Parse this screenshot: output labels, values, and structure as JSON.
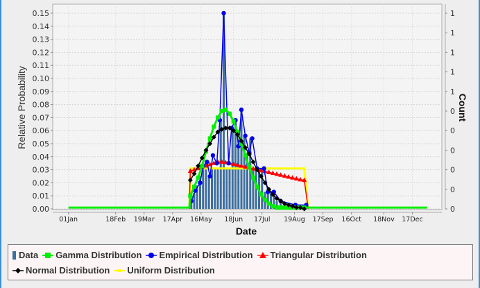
{
  "chart_data": {
    "type": "line",
    "xlabel": "Date",
    "ylabel": "Relative Probability",
    "y2label": "Count",
    "ylim": [
      0,
      0.15
    ],
    "xlim_day_of_year": [
      -16,
      380
    ],
    "grid": true,
    "legend_placement": "bottom",
    "yticks": [
      "0.00",
      "0.01",
      "0.02",
      "0.03",
      "0.04",
      "0.05",
      "0.06",
      "0.07",
      "0.08",
      "0.09",
      "0.10",
      "0.11",
      "0.12",
      "0.13",
      "0.14",
      "0.15"
    ],
    "y2ticks": [
      "0",
      "0",
      "0",
      "0",
      "0",
      "0",
      "1",
      "1",
      "1",
      "1",
      "1"
    ],
    "xticks": [
      {
        "label": "01Jan",
        "day": 0
      },
      {
        "label": "18Feb",
        "day": 48
      },
      {
        "label": "19Mar",
        "day": 77
      },
      {
        "label": "17Apr",
        "day": 106
      },
      {
        "label": "16May",
        "day": 135
      },
      {
        "label": "18Jun",
        "day": 168
      },
      {
        "label": "17Jul",
        "day": 197
      },
      {
        "label": "19Aug",
        "day": 230
      },
      {
        "label": "17Sep",
        "day": 259
      },
      {
        "label": "16Oct",
        "day": 288
      },
      {
        "label": "18Nov",
        "day": 321
      },
      {
        "label": "17Dec",
        "day": 350
      }
    ],
    "bars": {
      "name": "Data",
      "color": "#3e6e9e",
      "x": [
        125,
        128,
        131,
        134,
        137,
        140,
        143,
        146,
        149,
        152,
        155,
        158,
        161,
        164,
        167,
        170,
        173,
        176,
        179,
        182,
        185,
        188,
        191,
        194,
        197,
        200,
        203,
        206,
        209,
        212,
        216,
        220
      ],
      "values": [
        0.006,
        0.012,
        0.018,
        0.025,
        0.031,
        0.031,
        0.025,
        0.031,
        0.031,
        0.031,
        0.068,
        0.15,
        0.031,
        0.031,
        0.062,
        0.068,
        0.048,
        0.076,
        0.056,
        0.043,
        0.054,
        0.031,
        0.031,
        0.031,
        0.031,
        0.013,
        0.013,
        0.013,
        0.013,
        0.006,
        0.006,
        0.003
      ]
    },
    "series": [
      {
        "name": "Gamma Distribution",
        "color": "#00ee00",
        "marker": "square",
        "x": [
          0,
          123,
          124,
          128,
          132,
          136,
          140,
          144,
          148,
          152,
          156,
          160,
          164,
          168,
          172,
          176,
          180,
          184,
          188,
          192,
          196,
          200,
          204,
          208,
          212,
          216,
          220,
          224,
          228,
          232,
          236,
          240,
          244,
          365
        ],
        "values": [
          0.001,
          0.001,
          0.01,
          0.017,
          0.024,
          0.033,
          0.044,
          0.054,
          0.063,
          0.07,
          0.075,
          0.076,
          0.073,
          0.067,
          0.059,
          0.05,
          0.041,
          0.032,
          0.024,
          0.017,
          0.011,
          0.007,
          0.004,
          0.002,
          0.001,
          0.001,
          0.001,
          0.001,
          0.001,
          0.001,
          0.001,
          0.001,
          0.001,
          0.001
        ],
        "marker_range": [
          124,
          240
        ]
      },
      {
        "name": "Empirical Distribution",
        "color": "#0000ee",
        "marker": "circle",
        "x": [
          125,
          129,
          134,
          137,
          141,
          144,
          147,
          151,
          154,
          158,
          163,
          166,
          170,
          173,
          176,
          180,
          184,
          187,
          192,
          199,
          203,
          209,
          216,
          231,
          242
        ],
        "values": [
          0.006,
          0.014,
          0.02,
          0.033,
          0.036,
          0.025,
          0.041,
          0.035,
          0.068,
          0.15,
          0.035,
          0.062,
          0.068,
          0.048,
          0.076,
          0.056,
          0.043,
          0.054,
          0.031,
          0.031,
          0.013,
          0.013,
          0.006,
          0.003,
          0.003
        ]
      },
      {
        "name": "Triangular Distribution",
        "color": "#ff0000",
        "marker": "triangle",
        "x": [
          123,
          124,
          128,
          132,
          136,
          140,
          144,
          148,
          152,
          156,
          160,
          164,
          168,
          172,
          176,
          180,
          184,
          188,
          192,
          196,
          200,
          204,
          208,
          212,
          216,
          220,
          224,
          228,
          232,
          236,
          240,
          244
        ],
        "values": [
          0,
          0.029,
          0.03,
          0.031,
          0.032,
          0.033,
          0.034,
          0.035,
          0.036,
          0.036,
          0.0355,
          0.035,
          0.0343,
          0.0336,
          0.0329,
          0.0322,
          0.0315,
          0.0308,
          0.0301,
          0.0294,
          0.0287,
          0.028,
          0.0273,
          0.0266,
          0.0259,
          0.0252,
          0.0245,
          0.0238,
          0.0231,
          0.0224,
          0.022,
          0
        ],
        "marker_range": [
          124,
          240
        ]
      },
      {
        "name": "Normal Distribution",
        "color": "#000000",
        "marker": "diamond",
        "x": [
          124,
          128,
          132,
          136,
          140,
          144,
          148,
          152,
          156,
          160,
          164,
          168,
          172,
          176,
          180,
          184,
          188,
          192,
          196,
          200,
          204,
          208,
          212,
          216,
          220,
          224,
          228,
          232,
          236,
          240
        ],
        "values": [
          0.022,
          0.027,
          0.033,
          0.039,
          0.045,
          0.05,
          0.055,
          0.059,
          0.061,
          0.062,
          0.062,
          0.06,
          0.057,
          0.052,
          0.047,
          0.042,
          0.036,
          0.03,
          0.025,
          0.02,
          0.015,
          0.011,
          0.008,
          0.006,
          0.004,
          0.003,
          0.002,
          0.001,
          0.001,
          0.0
        ]
      },
      {
        "name": "Uniform Distribution",
        "color": "#ffff00",
        "marker": "none",
        "x": [
          123,
          124,
          240,
          244
        ],
        "values": [
          0,
          0.031,
          0.031,
          0
        ]
      }
    ]
  },
  "legend": {
    "data": "Data",
    "gamma": "Gamma Distribution",
    "empirical": "Empirical Distribution",
    "triangular": "Triangular Distribution",
    "normal": "Normal Distribution",
    "uniform": "Uniform Distribution"
  }
}
